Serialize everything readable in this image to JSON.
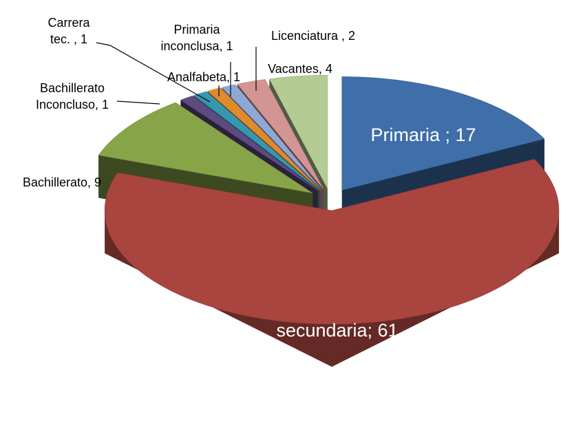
{
  "chart_data": {
    "type": "pie3d",
    "values": [
      17,
      61,
      9,
      1,
      1,
      1,
      1,
      2,
      4
    ],
    "value_labels": [
      "Primaria ; 17",
      "secundaria; 61",
      "Bachillerato, 9",
      "Bachillerato Inconcluso, 1",
      "Carrera tec. , 1",
      "Analfabeta, 1",
      "Primaria inconclusa, 1",
      "Licenciatura , 2",
      "Vacantes, 4"
    ],
    "colors": [
      "#3f6ea8",
      "#a9443f",
      "#87a449",
      "#5d4a80",
      "#3598b0",
      "#e08a2e",
      "#8ea8d6",
      "#d39593",
      "#b4cb93"
    ]
  }
}
